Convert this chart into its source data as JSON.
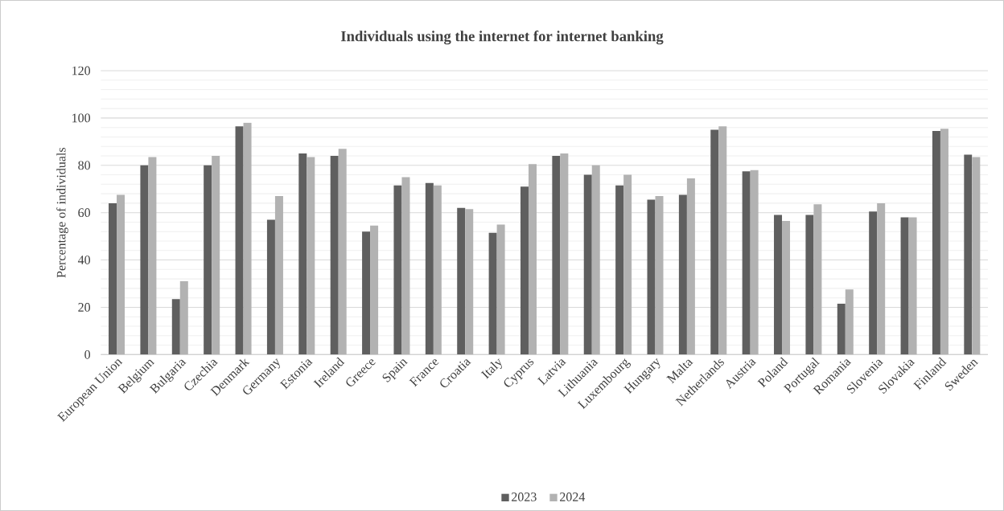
{
  "chart_data": {
    "type": "bar",
    "title": "Individuals  using the internet for internet banking",
    "ylabel": "Percentage of individuals",
    "categories": [
      "European Union",
      "Belgium",
      "Bulgaria",
      "Czechia",
      "Denmark",
      "Germany",
      "Estonia",
      "Ireland",
      "Greece",
      "Spain",
      "France",
      "Croatia",
      "Italy",
      "Cyprus",
      "Latvia",
      "Lithuania",
      "Luxembourg",
      "Hungary",
      "Malta",
      "Netherlands",
      "Austria",
      "Poland",
      "Portugal",
      "Romania",
      "Slovenia",
      "Slovakia",
      "Finland",
      "Sweden"
    ],
    "series": [
      {
        "name": "2023",
        "color": "#5f5f5f",
        "values": [
          64,
          80,
          23.5,
          80,
          96.5,
          57,
          85,
          84,
          52,
          71.5,
          72.5,
          62,
          51.5,
          71,
          84,
          76,
          71.5,
          65.5,
          67.5,
          95,
          77.5,
          59,
          59,
          21.5,
          60.5,
          58,
          94.5,
          84.5
        ]
      },
      {
        "name": "2024",
        "color": "#b2b2b2",
        "values": [
          67.5,
          83.5,
          31,
          84,
          98,
          67,
          83.5,
          87,
          54.5,
          75,
          71.5,
          61.5,
          55,
          80.5,
          85,
          80,
          76,
          67,
          74.5,
          96.5,
          78,
          56.5,
          63.5,
          27.5,
          64,
          58,
          95.5,
          83.5
        ]
      }
    ],
    "ylim": [
      0,
      120
    ],
    "yticks": [
      0,
      20,
      40,
      60,
      80,
      100,
      120
    ],
    "grid": "y",
    "legend": "bottom"
  }
}
